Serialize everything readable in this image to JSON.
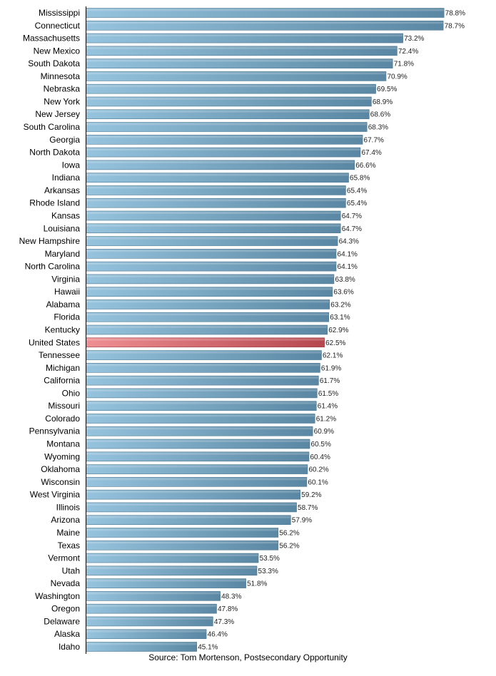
{
  "chart_data": {
    "type": "bar",
    "orientation": "horizontal",
    "categories": [
      "Mississippi",
      "Connecticut",
      "Massachusetts",
      "New Mexico",
      "South Dakota",
      "Minnesota",
      "Nebraska",
      "New York",
      "New Jersey",
      "South Carolina",
      "Georgia",
      "North Dakota",
      "Iowa",
      "Indiana",
      "Arkansas",
      "Rhode Island",
      "Kansas",
      "Louisiana",
      "New Hampshire",
      "Maryland",
      "North Carolina",
      "Virginia",
      "Hawaii",
      "Alabama",
      "Florida",
      "Kentucky",
      "United States",
      "Tennessee",
      "Michigan",
      "California",
      "Ohio",
      "Missouri",
      "Colorado",
      "Pennsylvania",
      "Montana",
      "Wyoming",
      "Oklahoma",
      "Wisconsin",
      "West Virginia",
      "Illinois",
      "Arizona",
      "Maine",
      "Texas",
      "Vermont",
      "Utah",
      "Nevada",
      "Washington",
      "Oregon",
      "Delaware",
      "Alaska",
      "Idaho"
    ],
    "values": [
      78.8,
      78.7,
      73.2,
      72.4,
      71.8,
      70.9,
      69.5,
      68.9,
      68.6,
      68.3,
      67.7,
      67.4,
      66.6,
      65.8,
      65.4,
      65.4,
      64.7,
      64.7,
      64.3,
      64.1,
      64.1,
      63.8,
      63.6,
      63.2,
      63.1,
      62.9,
      62.5,
      62.1,
      61.9,
      61.7,
      61.5,
      61.4,
      61.2,
      60.9,
      60.5,
      60.4,
      60.2,
      60.1,
      59.2,
      58.7,
      57.9,
      56.2,
      56.2,
      53.5,
      53.3,
      51.8,
      48.3,
      47.8,
      47.3,
      46.4,
      45.1
    ],
    "value_labels": [
      "78.8%",
      "78.7%",
      "73.2%",
      "72.4%",
      "71.8%",
      "70.9%",
      "69.5%",
      "68.9%",
      "68.6%",
      "68.3%",
      "67.7%",
      "67.4%",
      "66.6%",
      "65.8%",
      "65.4%",
      "65.4%",
      "64.7%",
      "64.7%",
      "64.3%",
      "64.1%",
      "64.1%",
      "63.8%",
      "63.6%",
      "63.2%",
      "63.1%",
      "62.9%",
      "62.5%",
      "62.1%",
      "61.9%",
      "61.7%",
      "61.5%",
      "61.4%",
      "61.2%",
      "60.9%",
      "60.5%",
      "60.4%",
      "60.2%",
      "60.1%",
      "59.2%",
      "58.7%",
      "57.9%",
      "56.2%",
      "56.2%",
      "53.5%",
      "53.3%",
      "51.8%",
      "48.3%",
      "47.8%",
      "47.3%",
      "46.4%",
      "45.1%"
    ],
    "highlight_category": "United States",
    "xlim": [
      30,
      80
    ],
    "unit": "%",
    "colors": {
      "bar_light": "#96c3dd",
      "bar_dark": "#5a87a3",
      "bar_edge": "#4d7690",
      "highlight_light": "#ee8f93",
      "highlight_dark": "#b6474f",
      "highlight_edge": "#9c3b42"
    },
    "title": "",
    "xlabel": "",
    "ylabel": "",
    "grid": false,
    "legend": "none"
  },
  "footer": {
    "source": "Source: Tom Mortenson, Postsecondary Opportunity"
  }
}
